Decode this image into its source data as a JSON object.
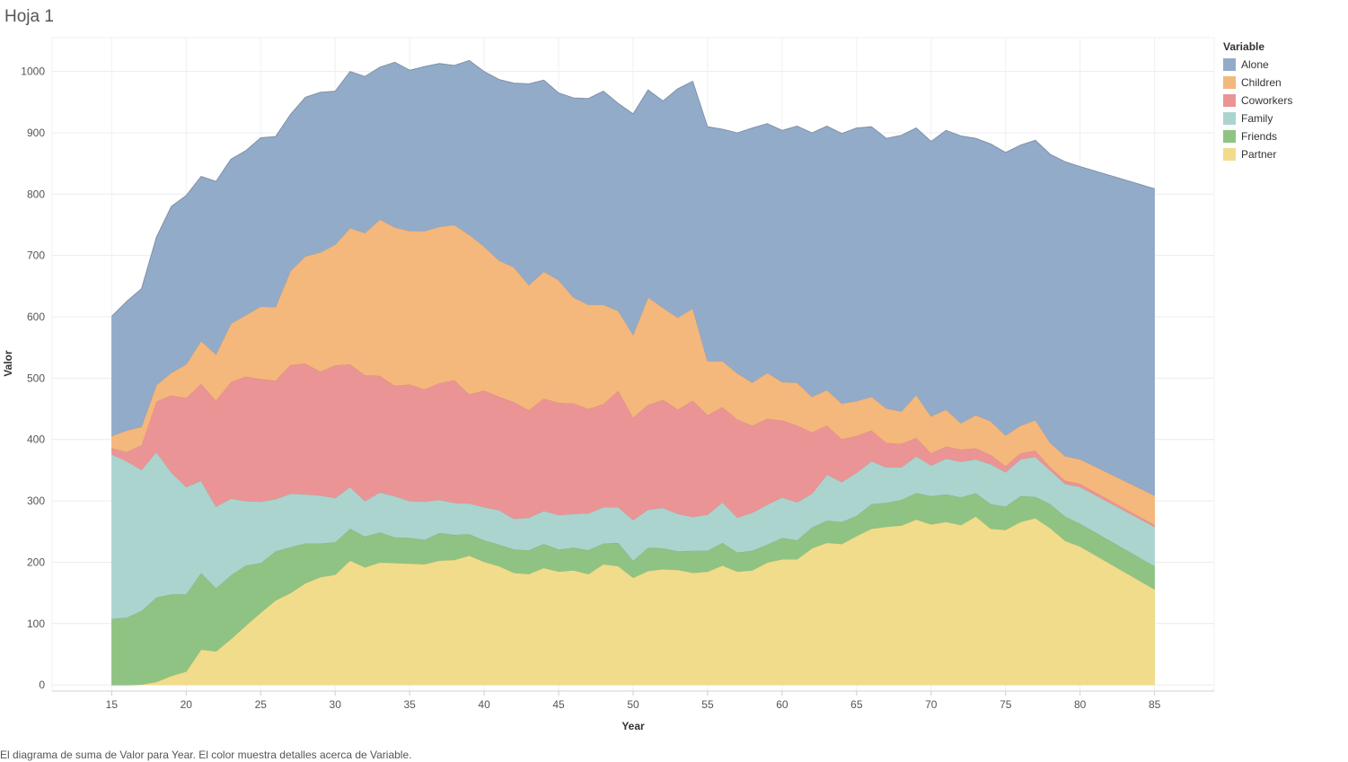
{
  "sheet": {
    "title": "Hoja 1",
    "caption": "El diagrama de suma de Valor para Year. El color muestra detalles acerca de Variable."
  },
  "legend": {
    "title": "Variable"
  },
  "chart_data": {
    "type": "area",
    "stacked": true,
    "xlabel": "Year",
    "ylabel": "Valor",
    "xlim": [
      11,
      89
    ],
    "ylim": [
      -10,
      1055
    ],
    "xticks": [
      15,
      20,
      25,
      30,
      35,
      40,
      45,
      50,
      55,
      60,
      65,
      70,
      75,
      80,
      85
    ],
    "yticks": [
      0,
      100,
      200,
      300,
      400,
      500,
      600,
      700,
      800,
      900,
      1000
    ],
    "grid": true,
    "legend_position": "top-right",
    "x": [
      15,
      16,
      17,
      18,
      19,
      20,
      21,
      22,
      23,
      24,
      25,
      26,
      27,
      28,
      29,
      30,
      31,
      32,
      33,
      34,
      35,
      36,
      37,
      38,
      39,
      40,
      41,
      42,
      43,
      44,
      45,
      46,
      47,
      48,
      49,
      50,
      51,
      52,
      53,
      54,
      55,
      56,
      57,
      58,
      59,
      60,
      61,
      62,
      63,
      64,
      65,
      66,
      67,
      68,
      69,
      70,
      71,
      72,
      73,
      74,
      75,
      76,
      77,
      78,
      79,
      80,
      85
    ],
    "series": [
      {
        "name": "Partner",
        "color": "#f1dc8b",
        "values": [
          0,
          0,
          1,
          5,
          15,
          22,
          58,
          55,
          75,
          97,
          118,
          138,
          150,
          166,
          176,
          180,
          203,
          192,
          200,
          199,
          198,
          197,
          203,
          204,
          211,
          201,
          194,
          183,
          181,
          191,
          185,
          187,
          181,
          197,
          194,
          175,
          186,
          189,
          188,
          183,
          185,
          195,
          185,
          187,
          200,
          205,
          205,
          223,
          232,
          230,
          243,
          255,
          258,
          260,
          270,
          262,
          266,
          261,
          275,
          255,
          253,
          266,
          272,
          256,
          235,
          226,
          156
        ]
      },
      {
        "name": "Friends",
        "color": "#8fc383",
        "values": [
          108,
          110,
          120,
          138,
          133,
          126,
          125,
          103,
          104,
          98,
          81,
          80,
          75,
          65,
          55,
          53,
          52,
          50,
          49,
          42,
          42,
          40,
          45,
          41,
          35,
          35,
          35,
          38,
          39,
          39,
          36,
          37,
          39,
          34,
          38,
          28,
          38,
          34,
          30,
          36,
          34,
          37,
          31,
          32,
          29,
          35,
          31,
          34,
          36,
          36,
          33,
          40,
          39,
          42,
          43,
          46,
          45,
          45,
          38,
          40,
          38,
          42,
          35,
          39,
          40,
          37,
          38
        ]
      },
      {
        "name": "Family",
        "color": "#abd4cf",
        "values": [
          268,
          255,
          230,
          237,
          199,
          175,
          150,
          133,
          125,
          105,
          100,
          85,
          87,
          80,
          78,
          72,
          68,
          58,
          65,
          67,
          60,
          62,
          54,
          52,
          50,
          54,
          56,
          50,
          53,
          54,
          56,
          55,
          60,
          59,
          58,
          66,
          62,
          66,
          61,
          55,
          59,
          66,
          57,
          62,
          65,
          66,
          62,
          55,
          75,
          65,
          70,
          70,
          58,
          53,
          60,
          50,
          58,
          58,
          55,
          65,
          56,
          60,
          65,
          55,
          53,
          60,
          64
        ]
      },
      {
        "name": "Coworkers",
        "color": "#eb9495",
        "values": [
          10,
          15,
          40,
          82,
          125,
          145,
          158,
          173,
          190,
          203,
          200,
          193,
          210,
          213,
          202,
          216,
          200,
          205,
          190,
          180,
          190,
          183,
          190,
          200,
          178,
          190,
          185,
          190,
          175,
          183,
          183,
          180,
          170,
          168,
          190,
          167,
          171,
          176,
          170,
          190,
          162,
          155,
          160,
          142,
          140,
          125,
          125,
          100,
          80,
          70,
          60,
          50,
          40,
          38,
          30,
          20,
          20,
          20,
          18,
          15,
          10,
          10,
          10,
          5,
          5,
          5,
          3
        ]
      },
      {
        "name": "Children",
        "color": "#f4b77c",
        "values": [
          20,
          35,
          30,
          27,
          37,
          55,
          70,
          75,
          95,
          100,
          118,
          120,
          153,
          175,
          194,
          197,
          222,
          232,
          255,
          258,
          250,
          258,
          255,
          253,
          260,
          235,
          222,
          220,
          204,
          207,
          200,
          173,
          170,
          162,
          130,
          135,
          175,
          150,
          150,
          150,
          88,
          75,
          75,
          70,
          75,
          63,
          70,
          58,
          58,
          58,
          57,
          55,
          56,
          53,
          70,
          60,
          60,
          43,
          54,
          55,
          50,
          45,
          50,
          40,
          40,
          40,
          48
        ]
      },
      {
        "name": "Alone",
        "color": "#92abc9",
        "values": [
          195,
          210,
          225,
          241,
          271,
          275,
          268,
          282,
          268,
          268,
          275,
          278,
          255,
          259,
          261,
          250,
          255,
          255,
          248,
          269,
          262,
          268,
          266,
          260,
          284,
          285,
          295,
          300,
          328,
          312,
          305,
          325,
          336,
          348,
          338,
          360,
          338,
          337,
          373,
          370,
          382,
          378,
          392,
          415,
          406,
          410,
          418,
          430,
          430,
          440,
          445,
          440,
          440,
          450,
          435,
          448,
          455,
          468,
          451,
          452,
          461,
          457,
          456,
          470,
          480,
          477,
          500
        ]
      }
    ]
  }
}
